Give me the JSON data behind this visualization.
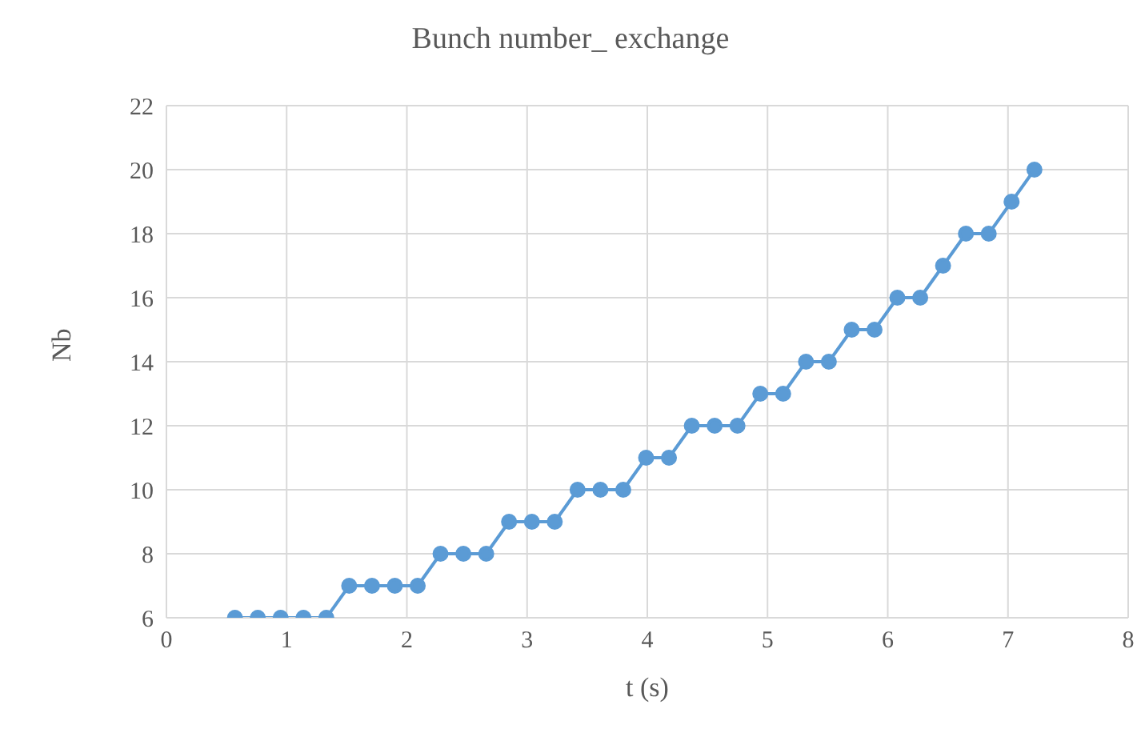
{
  "chart_data": {
    "type": "line",
    "title": "Bunch number_ exchange",
    "xlabel": "t (s)",
    "ylabel": "Nb",
    "x": [
      0.57,
      0.76,
      0.95,
      1.14,
      1.33,
      1.52,
      1.71,
      1.9,
      2.09,
      2.28,
      2.47,
      2.66,
      2.85,
      3.04,
      3.23,
      3.42,
      3.61,
      3.8,
      3.99,
      4.18,
      4.37,
      4.56,
      4.75,
      4.94,
      5.13,
      5.32,
      5.51,
      5.7,
      5.89,
      6.08,
      6.27,
      6.46,
      6.65,
      6.84,
      7.03,
      7.22
    ],
    "series": [
      {
        "color": "#5b9bd5",
        "values": [
          6,
          6,
          6,
          6,
          6,
          7,
          7,
          7,
          7,
          8,
          8,
          8,
          9,
          9,
          9,
          10,
          10,
          10,
          11,
          11,
          12,
          12,
          12,
          13,
          13,
          14,
          14,
          15,
          15,
          16,
          16,
          17,
          18,
          18,
          19,
          20
        ]
      }
    ],
    "xlim": [
      0,
      8
    ],
    "xticks": [
      0,
      1,
      2,
      3,
      4,
      5,
      6,
      7,
      8
    ],
    "ylim": [
      6,
      22
    ],
    "yticks": [
      6,
      8,
      10,
      12,
      14,
      16,
      18,
      20,
      22
    ],
    "grid": true,
    "marker": "circle",
    "line_style": "solid",
    "legend": false
  }
}
